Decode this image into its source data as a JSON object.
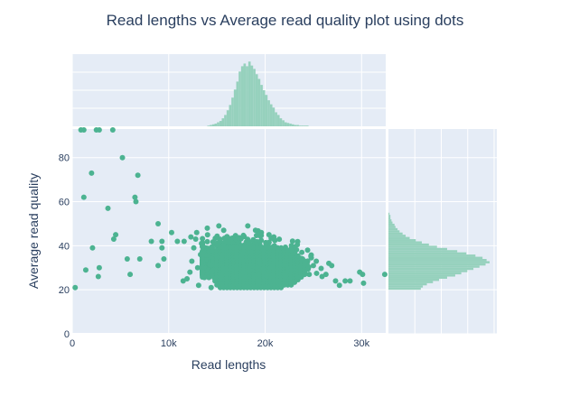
{
  "chart_data": {
    "type": "scatter",
    "title": "Read lengths vs Average read quality plot using dots",
    "xlabel": "Read lengths",
    "ylabel": "Average read quality",
    "xlim": [
      0,
      32500
    ],
    "ylim": [
      0,
      93
    ],
    "x_ticks": [
      0,
      10000,
      20000,
      30000
    ],
    "x_tick_labels": [
      "0",
      "10k",
      "20k",
      "30k"
    ],
    "y_ticks": [
      0,
      20,
      40,
      60,
      80
    ],
    "y_tick_labels": [
      "0",
      "20",
      "40",
      "60",
      "80"
    ],
    "grid": true,
    "legend": "none",
    "colors": {
      "point": "#4cb391",
      "histogram": "#96d1bd",
      "plot_bg": "#e5ecf6",
      "text": "#2a3f5f"
    },
    "cluster": {
      "x_range": [
        13500,
        28000
      ],
      "y_range": [
        20,
        50
      ],
      "x_peak": 17500,
      "y_peak": 30,
      "description_level": "dense"
    },
    "points": [
      {
        "x": 300,
        "y": 21
      },
      {
        "x": 1200,
        "y": 62
      },
      {
        "x": 1400,
        "y": 29
      },
      {
        "x": 2000,
        "y": 73
      },
      {
        "x": 2100,
        "y": 39
      },
      {
        "x": 2700,
        "y": 26
      },
      {
        "x": 2800,
        "y": 30
      },
      {
        "x": 3700,
        "y": 57
      },
      {
        "x": 4300,
        "y": 43
      },
      {
        "x": 4500,
        "y": 45
      },
      {
        "x": 5200,
        "y": 80
      },
      {
        "x": 5700,
        "y": 34
      },
      {
        "x": 6000,
        "y": 27
      },
      {
        "x": 6500,
        "y": 62
      },
      {
        "x": 6600,
        "y": 60
      },
      {
        "x": 6800,
        "y": 72
      },
      {
        "x": 7000,
        "y": 34
      },
      {
        "x": 8200,
        "y": 42
      },
      {
        "x": 8900,
        "y": 50
      },
      {
        "x": 8900,
        "y": 31
      },
      {
        "x": 9300,
        "y": 42
      },
      {
        "x": 9300,
        "y": 39
      },
      {
        "x": 9500,
        "y": 34
      },
      {
        "x": 10300,
        "y": 46
      },
      {
        "x": 10900,
        "y": 42
      },
      {
        "x": 11600,
        "y": 42
      },
      {
        "x": 11500,
        "y": 24
      },
      {
        "x": 11900,
        "y": 25
      },
      {
        "x": 12200,
        "y": 28
      },
      {
        "x": 12300,
        "y": 44
      },
      {
        "x": 12400,
        "y": 33
      },
      {
        "x": 12600,
        "y": 39
      },
      {
        "x": 12800,
        "y": 43
      },
      {
        "x": 12900,
        "y": 46
      },
      {
        "x": 13000,
        "y": 30
      },
      {
        "x": 13100,
        "y": 22
      },
      {
        "x": 13300,
        "y": 36
      },
      {
        "x": 13400,
        "y": 41
      },
      {
        "x": 14000,
        "y": 48
      },
      {
        "x": 14200,
        "y": 37
      },
      {
        "x": 14400,
        "y": 21
      },
      {
        "x": 14800,
        "y": 24
      },
      {
        "x": 15200,
        "y": 49
      },
      {
        "x": 15700,
        "y": 47
      },
      {
        "x": 18200,
        "y": 49
      },
      {
        "x": 19000,
        "y": 47
      },
      {
        "x": 19600,
        "y": 46
      },
      {
        "x": 20400,
        "y": 45
      },
      {
        "x": 20900,
        "y": 44
      },
      {
        "x": 22700,
        "y": 38
      },
      {
        "x": 23800,
        "y": 37
      },
      {
        "x": 24400,
        "y": 38
      },
      {
        "x": 25000,
        "y": 31
      },
      {
        "x": 25300,
        "y": 33
      },
      {
        "x": 25900,
        "y": 26
      },
      {
        "x": 26300,
        "y": 27
      },
      {
        "x": 26600,
        "y": 32
      },
      {
        "x": 26900,
        "y": 31
      },
      {
        "x": 27300,
        "y": 24
      },
      {
        "x": 27700,
        "y": 22
      },
      {
        "x": 28300,
        "y": 24
      },
      {
        "x": 28800,
        "y": 24
      },
      {
        "x": 29800,
        "y": 28
      },
      {
        "x": 30100,
        "y": 27
      },
      {
        "x": 30200,
        "y": 23
      },
      {
        "x": 32400,
        "y": 27
      }
    ],
    "x_histogram": {
      "bin_width": 250,
      "x_start": 14000,
      "counts": [
        1,
        2,
        3,
        4,
        6,
        8,
        12,
        17,
        24,
        32,
        43,
        55,
        67,
        82,
        90,
        94,
        90,
        97,
        91,
        86,
        78,
        71,
        62,
        54,
        47,
        39,
        33,
        28,
        21,
        17,
        12,
        9,
        6,
        5,
        4,
        3,
        2,
        2,
        1,
        1,
        1,
        1
      ],
      "max_count": 100
    },
    "y_histogram": {
      "bin_width": 1,
      "y_start": 20,
      "counts": [
        32,
        34,
        38,
        44,
        50,
        58,
        66,
        72,
        78,
        84,
        90,
        96,
        100,
        97,
        93,
        86,
        77,
        68,
        58,
        48,
        40,
        33,
        27,
        21,
        17,
        14,
        11,
        9,
        7,
        6,
        4,
        3,
        2,
        2,
        1
      ],
      "max_count": 100
    }
  }
}
